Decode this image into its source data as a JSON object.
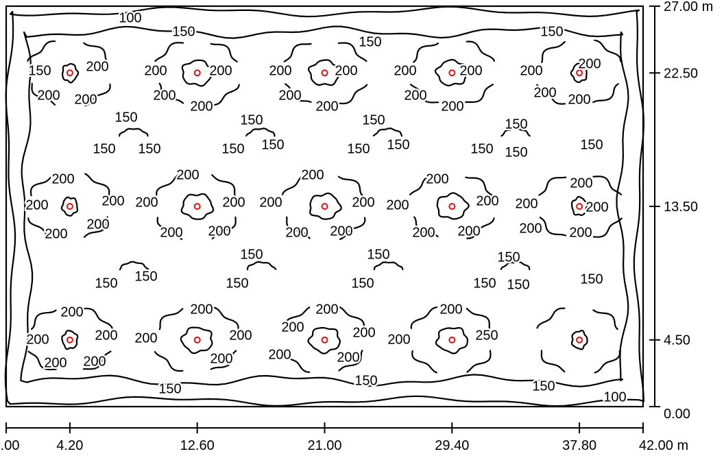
{
  "diagram": {
    "axes": {
      "x_tick_labels": [
        "0.00",
        "4.20",
        "12.60",
        "21.00",
        "29.40",
        "37.80",
        "42.00 m"
      ],
      "y_tick_labels": [
        "27.00 m",
        "22.50",
        "13.50",
        "4.50",
        "0.00"
      ]
    },
    "colors": {
      "contour": "#000000",
      "luminaire": "#e31010",
      "frame": "#000000"
    },
    "luminaire_columns_m": [
      4.2,
      12.6,
      21.0,
      29.4,
      37.8
    ],
    "luminaire_rows_m": [
      22.5,
      13.5,
      4.5
    ],
    "isolines": {
      "outer": "100",
      "mid": "150",
      "near": "200",
      "peak": "250"
    },
    "labels": [
      {
        "text": "100",
        "level": "outer"
      },
      {
        "text": "100",
        "level": "outer"
      },
      {
        "text": "150",
        "level": "mid"
      },
      {
        "text": "150",
        "level": "mid"
      },
      {
        "text": "150",
        "level": "mid"
      },
      {
        "text": "150",
        "level": "mid"
      },
      {
        "text": "150",
        "level": "mid"
      },
      {
        "text": "150",
        "level": "mid"
      },
      {
        "text": "150",
        "level": "mid"
      },
      {
        "text": "150",
        "level": "mid"
      },
      {
        "text": "150",
        "level": "mid"
      },
      {
        "text": "150",
        "level": "mid"
      },
      {
        "text": "150",
        "level": "mid"
      },
      {
        "text": "150",
        "level": "mid"
      },
      {
        "text": "150",
        "level": "mid"
      },
      {
        "text": "150",
        "level": "mid"
      },
      {
        "text": "150",
        "level": "mid"
      },
      {
        "text": "150",
        "level": "mid"
      },
      {
        "text": "150",
        "level": "mid"
      },
      {
        "text": "150",
        "level": "mid"
      },
      {
        "text": "150",
        "level": "mid"
      },
      {
        "text": "150",
        "level": "mid"
      },
      {
        "text": "150",
        "level": "mid"
      },
      {
        "text": "150",
        "level": "mid"
      },
      {
        "text": "150",
        "level": "mid"
      },
      {
        "text": "150",
        "level": "mid"
      },
      {
        "text": "150",
        "level": "mid"
      },
      {
        "text": "150",
        "level": "mid"
      },
      {
        "text": "150",
        "level": "mid"
      },
      {
        "text": "150",
        "level": "mid"
      },
      {
        "text": "150",
        "level": "mid"
      },
      {
        "text": "150",
        "level": "mid"
      },
      {
        "text": "200",
        "level": "near"
      },
      {
        "text": "200",
        "level": "near"
      },
      {
        "text": "200",
        "level": "near"
      },
      {
        "text": "200",
        "level": "near"
      },
      {
        "text": "200",
        "level": "near"
      },
      {
        "text": "200",
        "level": "near"
      },
      {
        "text": "200",
        "level": "near"
      },
      {
        "text": "200",
        "level": "near"
      },
      {
        "text": "200",
        "level": "near"
      },
      {
        "text": "200",
        "level": "near"
      },
      {
        "text": "200",
        "level": "near"
      },
      {
        "text": "200",
        "level": "near"
      },
      {
        "text": "200",
        "level": "near"
      },
      {
        "text": "200",
        "level": "near"
      },
      {
        "text": "200",
        "level": "near"
      },
      {
        "text": "200",
        "level": "near"
      },
      {
        "text": "200",
        "level": "near"
      },
      {
        "text": "200",
        "level": "near"
      },
      {
        "text": "200",
        "level": "near"
      },
      {
        "text": "200",
        "level": "near"
      },
      {
        "text": "200",
        "level": "near"
      },
      {
        "text": "200",
        "level": "near"
      },
      {
        "text": "200",
        "level": "near"
      },
      {
        "text": "200",
        "level": "near"
      },
      {
        "text": "200",
        "level": "near"
      },
      {
        "text": "200",
        "level": "near"
      },
      {
        "text": "200",
        "level": "near"
      },
      {
        "text": "200",
        "level": "near"
      },
      {
        "text": "200",
        "level": "near"
      },
      {
        "text": "200",
        "level": "near"
      },
      {
        "text": "200",
        "level": "near"
      },
      {
        "text": "200",
        "level": "near"
      },
      {
        "text": "200",
        "level": "near"
      },
      {
        "text": "200",
        "level": "near"
      },
      {
        "text": "200",
        "level": "near"
      },
      {
        "text": "200",
        "level": "near"
      },
      {
        "text": "200",
        "level": "near"
      },
      {
        "text": "200",
        "level": "near"
      },
      {
        "text": "200",
        "level": "near"
      },
      {
        "text": "200",
        "level": "near"
      },
      {
        "text": "200",
        "level": "near"
      },
      {
        "text": "200",
        "level": "near"
      },
      {
        "text": "200",
        "level": "near"
      },
      {
        "text": "200",
        "level": "near"
      },
      {
        "text": "200",
        "level": "near"
      },
      {
        "text": "200",
        "level": "near"
      },
      {
        "text": "200",
        "level": "near"
      },
      {
        "text": "200",
        "level": "near"
      },
      {
        "text": "200",
        "level": "near"
      },
      {
        "text": "200",
        "level": "near"
      },
      {
        "text": "200",
        "level": "near"
      },
      {
        "text": "200",
        "level": "near"
      },
      {
        "text": "200",
        "level": "near"
      },
      {
        "text": "200",
        "level": "near"
      },
      {
        "text": "200",
        "level": "near"
      },
      {
        "text": "200",
        "level": "near"
      },
      {
        "text": "200",
        "level": "near"
      },
      {
        "text": "200",
        "level": "near"
      },
      {
        "text": "200",
        "level": "near"
      },
      {
        "text": "200",
        "level": "near"
      },
      {
        "text": "250",
        "level": "peak"
      }
    ]
  }
}
